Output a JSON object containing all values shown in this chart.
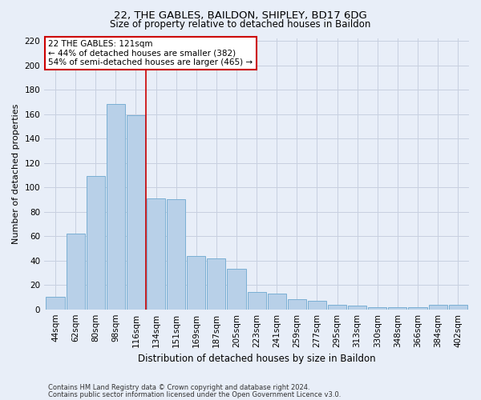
{
  "title1": "22, THE GABLES, BAILDON, SHIPLEY, BD17 6DG",
  "title2": "Size of property relative to detached houses in Baildon",
  "xlabel": "Distribution of detached houses by size in Baildon",
  "ylabel": "Number of detached properties",
  "footnote1": "Contains HM Land Registry data © Crown copyright and database right 2024.",
  "footnote2": "Contains public sector information licensed under the Open Government Licence v3.0.",
  "categories": [
    "44sqm",
    "62sqm",
    "80sqm",
    "98sqm",
    "116sqm",
    "134sqm",
    "151sqm",
    "169sqm",
    "187sqm",
    "205sqm",
    "223sqm",
    "241sqm",
    "259sqm",
    "277sqm",
    "295sqm",
    "313sqm",
    "330sqm",
    "348sqm",
    "366sqm",
    "384sqm",
    "402sqm"
  ],
  "values": [
    10,
    62,
    109,
    168,
    159,
    91,
    90,
    44,
    42,
    33,
    14,
    13,
    8,
    7,
    4,
    3,
    2,
    2,
    2,
    4,
    4
  ],
  "bar_color": "#b8d0e8",
  "bar_edge_color": "#7aafd4",
  "vline_x": 4.5,
  "vline_color": "#cc0000",
  "annotation_title": "22 THE GABLES: 121sqm",
  "annotation_line1": "← 44% of detached houses are smaller (382)",
  "annotation_line2": "54% of semi-detached houses are larger (465) →",
  "annotation_box_color": "white",
  "annotation_box_edge": "#cc0000",
  "ylim": [
    0,
    222
  ],
  "yticks": [
    0,
    20,
    40,
    60,
    80,
    100,
    120,
    140,
    160,
    180,
    200,
    220
  ],
  "grid_color": "#c8d0e0",
  "background_color": "#e8eef8",
  "title1_fontsize": 9.5,
  "title2_fontsize": 8.5,
  "xlabel_fontsize": 8.5,
  "ylabel_fontsize": 8,
  "tick_fontsize": 7.5,
  "ann_fontsize": 7.5,
  "footnote_fontsize": 6
}
